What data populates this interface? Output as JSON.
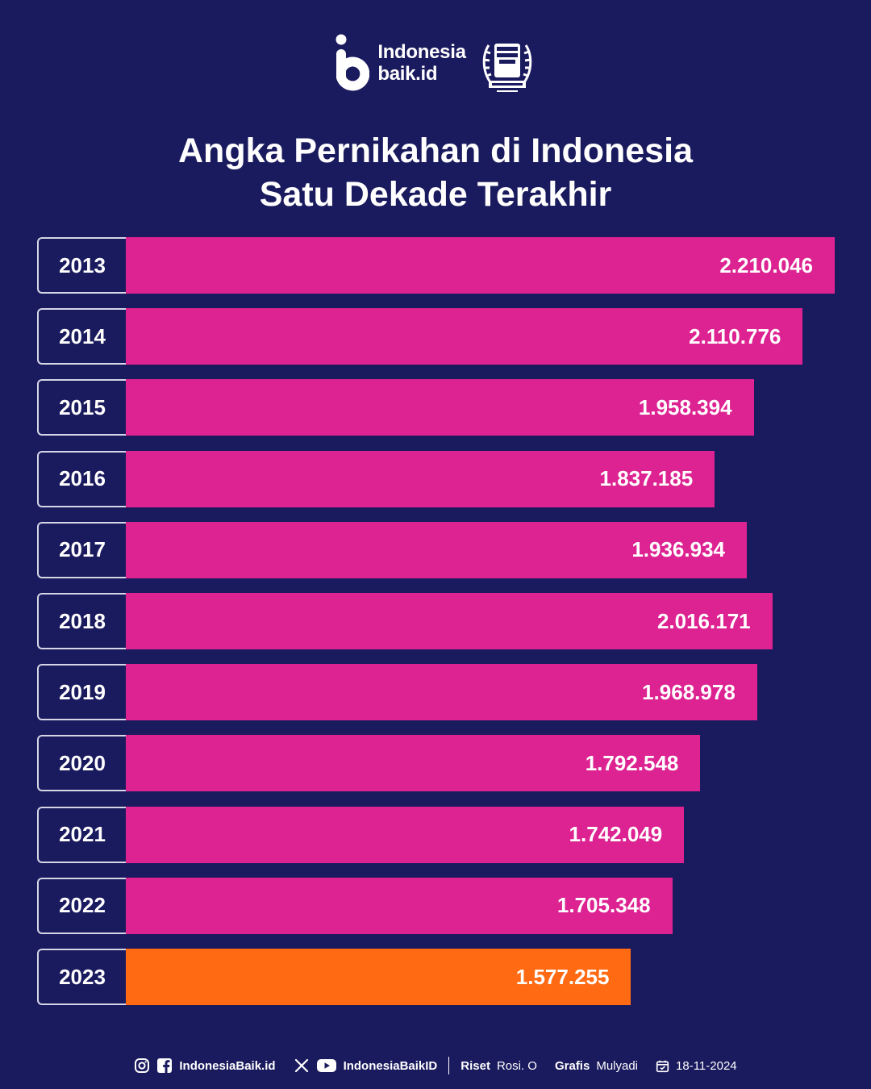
{
  "brand": {
    "line1": "Indonesia",
    "line2": "baik.id",
    "award_text": "WSIS PRIZES 2018 WINNER"
  },
  "title": {
    "line1": "Angka Pernikahan di Indonesia",
    "line2": "Satu Dekade Terakhir"
  },
  "colors": {
    "background": "#1a1a5e",
    "bar": "#dd2392",
    "highlight_bar": "#ff6a13"
  },
  "chart_data": {
    "type": "bar",
    "orientation": "horizontal",
    "title": "Angka Pernikahan di Indonesia Satu Dekade Terakhir",
    "categories": [
      "2013",
      "2014",
      "2015",
      "2016",
      "2017",
      "2018",
      "2019",
      "2020",
      "2021",
      "2022",
      "2023"
    ],
    "values": [
      2210046,
      2110776,
      1958394,
      1837185,
      1936934,
      2016171,
      1968978,
      1792548,
      1742049,
      1705348,
      1577255
    ],
    "value_labels": [
      "2.210.046",
      "2.110.776",
      "1.958.394",
      "1.837.185",
      "1.936.934",
      "2.016.171",
      "1.968.978",
      "1.792.548",
      "1.742.049",
      "1.705.348",
      "1.577.255"
    ],
    "highlight_category": "2023",
    "xlim": [
      0,
      2210046
    ],
    "grid": false,
    "legend": "none"
  },
  "footer": {
    "social_handle": "IndonesiaBaik.id",
    "video_handle": "IndonesiaBaikID",
    "riset_label": "Riset",
    "riset_name": "Rosi. O",
    "grafis_label": "Grafis",
    "grafis_name": "Mulyadi",
    "date": "18-11-2024",
    "icons": [
      "instagram-icon",
      "facebook-icon",
      "x-icon",
      "youtube-icon",
      "calendar-icon"
    ]
  }
}
